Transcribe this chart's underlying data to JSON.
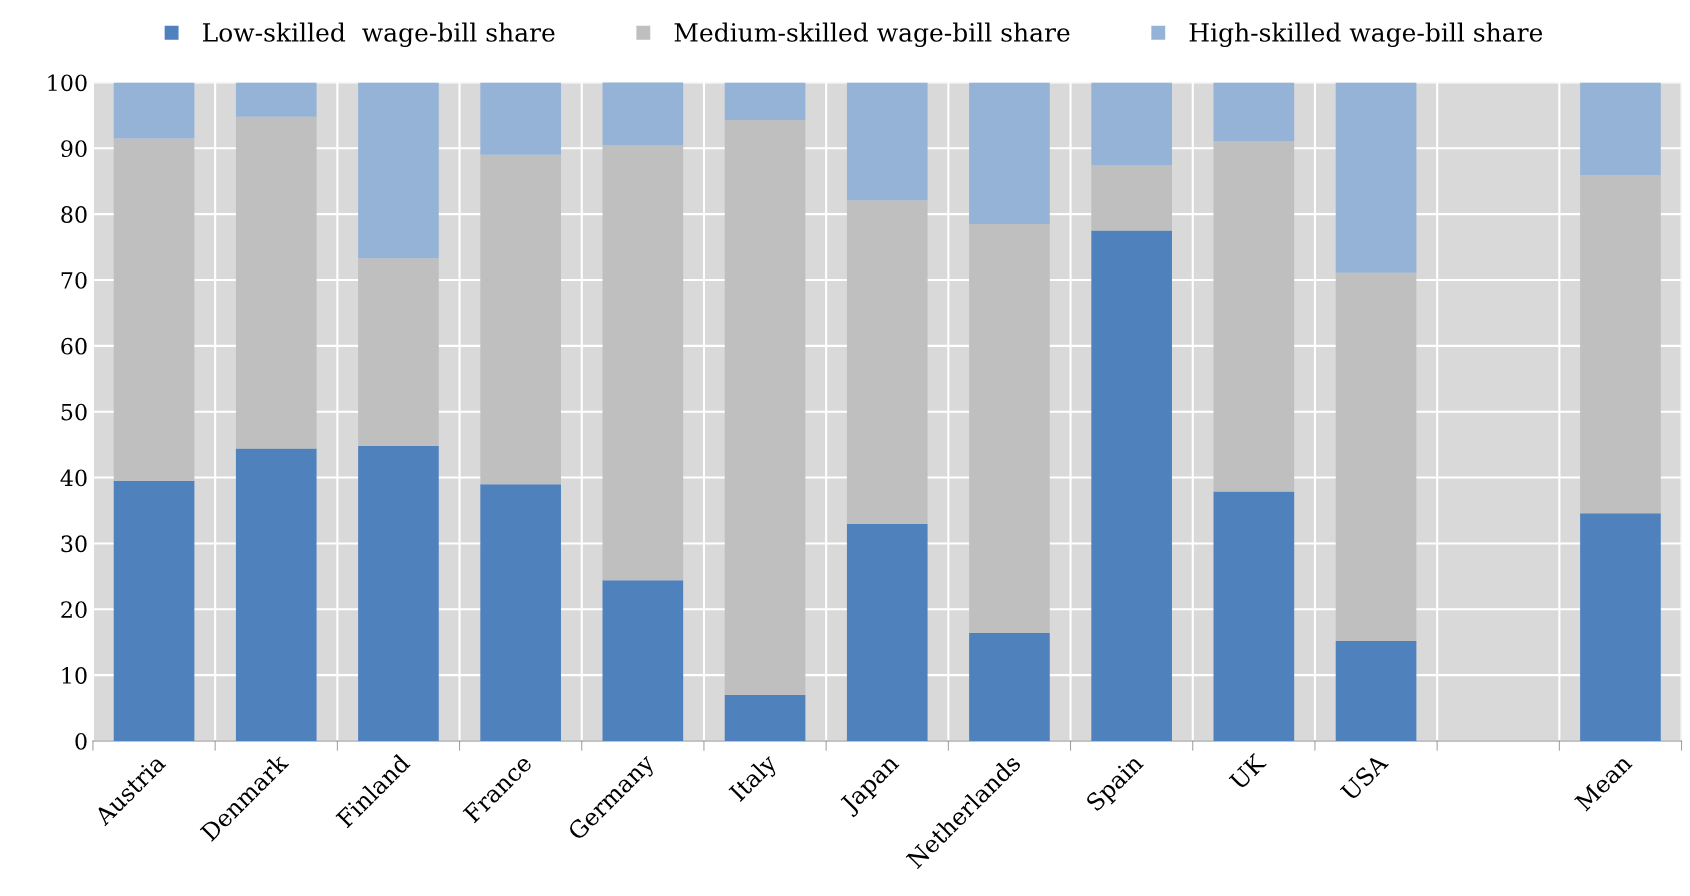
{
  "chart_data": {
    "type": "bar",
    "stacked": true,
    "categories": [
      "Austria",
      "Denmark",
      "Finland",
      "France",
      "Germany",
      "Italy",
      "Japan",
      "Netherlands",
      "Spain",
      "UK",
      "USA",
      null,
      "Mean"
    ],
    "series": [
      {
        "name": "Low-skilled  wage-bill share",
        "color": "#4f81bd",
        "values": [
          39.5,
          44.4,
          44.8,
          39.0,
          24.4,
          7.0,
          33.0,
          16.4,
          77.5,
          37.9,
          15.2,
          null,
          34.6
        ]
      },
      {
        "name": "Medium-skilled wage-bill share",
        "color": "#bfbfbf",
        "values": [
          52.0,
          50.4,
          28.5,
          50.0,
          66.1,
          87.3,
          49.1,
          62.1,
          9.9,
          53.2,
          55.9,
          null,
          51.3
        ]
      },
      {
        "name": "High-skilled wage-bill share",
        "color": "#95b3d7",
        "values": [
          8.5,
          5.2,
          26.7,
          11.0,
          9.8,
          5.7,
          17.9,
          21.5,
          12.6,
          8.9,
          28.9,
          null,
          14.1
        ]
      }
    ],
    "ylim": [
      0,
      100
    ],
    "yticks": [
      0,
      10,
      20,
      30,
      40,
      50,
      60,
      70,
      80,
      90,
      100
    ],
    "grid": true,
    "legend": "top"
  }
}
